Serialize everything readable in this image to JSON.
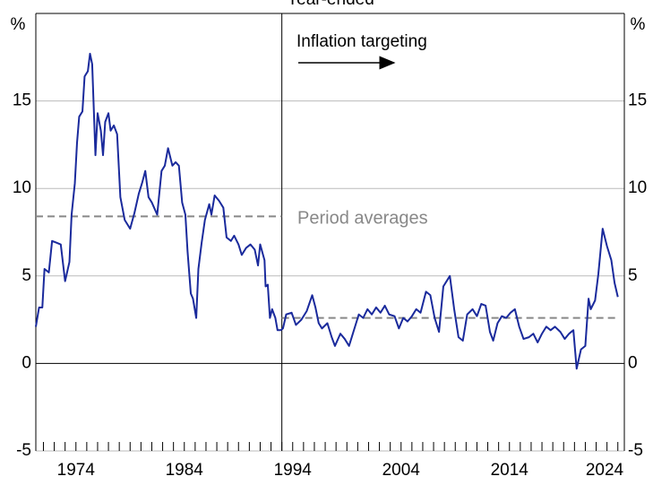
{
  "chart_data": {
    "type": "line",
    "title": "Year-ended",
    "y_unit_left": "%",
    "y_unit_right": "%",
    "color": "#1a2a9c",
    "x": [
      1970.3,
      1970.6,
      1970.9,
      1971.1,
      1971.5,
      1971.8,
      1972.2,
      1972.6,
      1973.0,
      1973.4,
      1973.6,
      1973.9,
      1974.1,
      1974.3,
      1974.6,
      1974.8,
      1975.1,
      1975.3,
      1975.5,
      1975.8,
      1976.0,
      1976.3,
      1976.5,
      1976.7,
      1977.0,
      1977.2,
      1977.5,
      1977.8,
      1978.1,
      1978.5,
      1979.0,
      1979.4,
      1979.8,
      1980.1,
      1980.4,
      1980.7,
      1981.0,
      1981.5,
      1981.9,
      1982.2,
      1982.5,
      1982.9,
      1983.2,
      1983.5,
      1983.8,
      1984.1,
      1984.3,
      1984.6,
      1984.8,
      1985.1,
      1985.3,
      1985.6,
      1985.9,
      1986.3,
      1986.5,
      1986.8,
      1987.2,
      1987.6,
      1987.9,
      1988.3,
      1988.6,
      1989.0,
      1989.3,
      1989.7,
      1990.1,
      1990.5,
      1990.8,
      1991.0,
      1991.4,
      1991.5,
      1991.7,
      1991.9,
      1992.1,
      1992.4,
      1992.6,
      1992.9,
      1993.1,
      1993.4,
      1993.9,
      1994.3,
      1994.8,
      1995.3,
      1995.8,
      1996.1,
      1996.4,
      1996.7,
      1997.2,
      1997.6,
      1997.9,
      1998.4,
      1998.8,
      1999.2,
      1999.6,
      2000.1,
      2000.5,
      2000.9,
      2001.3,
      2001.7,
      2002.1,
      2002.5,
      2002.9,
      2003.4,
      2003.8,
      2004.2,
      2004.6,
      2005.0,
      2005.4,
      2005.8,
      2006.3,
      2006.7,
      2007.1,
      2007.5,
      2007.9,
      2008.5,
      2008.9,
      2009.3,
      2009.7,
      2010.1,
      2010.6,
      2011.0,
      2011.4,
      2011.8,
      2012.2,
      2012.5,
      2012.9,
      2013.3,
      2013.7,
      2014.1,
      2014.5,
      2014.9,
      2015.3,
      2015.8,
      2016.2,
      2016.6,
      2017.0,
      2017.4,
      2017.8,
      2018.2,
      2018.7,
      2019.1,
      2019.5,
      2019.9,
      2020.2,
      2020.6,
      2021.0,
      2021.3,
      2021.5,
      2021.9,
      2022.2,
      2022.6,
      2023.0,
      2023.4,
      2023.7,
      2024.0
    ],
    "values": [
      2.1,
      3.2,
      3.2,
      5.4,
      5.2,
      7.0,
      6.9,
      6.8,
      4.7,
      5.8,
      8.5,
      10.3,
      12.6,
      14.1,
      14.4,
      16.4,
      16.7,
      17.7,
      17.1,
      11.9,
      14.3,
      13.3,
      11.9,
      13.8,
      14.3,
      13.3,
      13.6,
      13.1,
      9.5,
      8.2,
      7.7,
      8.6,
      9.7,
      10.3,
      11.0,
      9.5,
      9.2,
      8.5,
      11.0,
      11.3,
      12.3,
      11.3,
      11.5,
      11.3,
      9.2,
      8.5,
      6.4,
      4.0,
      3.7,
      2.6,
      5.4,
      6.9,
      8.2,
      9.1,
      8.5,
      9.6,
      9.3,
      8.9,
      7.2,
      7.0,
      7.3,
      6.8,
      6.2,
      6.6,
      6.8,
      6.5,
      5.6,
      6.8,
      5.9,
      4.4,
      4.5,
      2.6,
      3.1,
      2.6,
      1.9,
      1.9,
      2.0,
      2.8,
      2.9,
      2.2,
      2.5,
      3.0,
      3.9,
      3.2,
      2.3,
      2.0,
      2.3,
      1.5,
      1.0,
      1.7,
      1.4,
      1.0,
      1.8,
      2.8,
      2.6,
      3.1,
      2.8,
      3.2,
      2.9,
      3.3,
      2.8,
      2.7,
      2.0,
      2.6,
      2.4,
      2.7,
      3.1,
      2.9,
      4.1,
      3.9,
      2.6,
      1.8,
      4.4,
      5.0,
      3.1,
      1.5,
      1.3,
      2.8,
      3.1,
      2.7,
      3.4,
      3.3,
      1.8,
      1.3,
      2.3,
      2.7,
      2.6,
      2.9,
      3.1,
      2.1,
      1.4,
      1.5,
      1.7,
      1.2,
      1.7,
      2.1,
      1.9,
      2.1,
      1.8,
      1.4,
      1.7,
      1.9,
      -0.3,
      0.8,
      1.0,
      3.7,
      3.1,
      3.6,
      5.1,
      7.7,
      6.7,
      5.9,
      4.6,
      3.8
    ],
    "xlim": [
      1970.3,
      2024.6
    ],
    "xticks": [
      1974,
      1984,
      1994,
      2004,
      2014,
      2024
    ],
    "xminorticks": [
      1971,
      1972,
      1973,
      1974,
      1975,
      1976,
      1977,
      1978,
      1979,
      1980,
      1981,
      1982,
      1983,
      1984,
      1985,
      1986,
      1987,
      1988,
      1989,
      1990,
      1991,
      1992,
      1993,
      1994,
      1995,
      1996,
      1997,
      1998,
      1999,
      2000,
      2001,
      2002,
      2003,
      2004,
      2005,
      2006,
      2007,
      2008,
      2009,
      2010,
      2011,
      2012,
      2013,
      2014,
      2015,
      2016,
      2017,
      2018,
      2019,
      2020,
      2021,
      2022,
      2023,
      2024
    ],
    "ylim": [
      -5,
      20
    ],
    "yticks": [
      -5,
      0,
      5,
      10,
      15
    ],
    "grid": true,
    "vline": 1993,
    "period_averages": [
      {
        "start": 1970.3,
        "end": 1993,
        "value": 8.4
      },
      {
        "start": 1993,
        "end": 2024,
        "value": 2.6
      }
    ],
    "annotations": [
      "Inflation targeting",
      "Period averages"
    ]
  }
}
